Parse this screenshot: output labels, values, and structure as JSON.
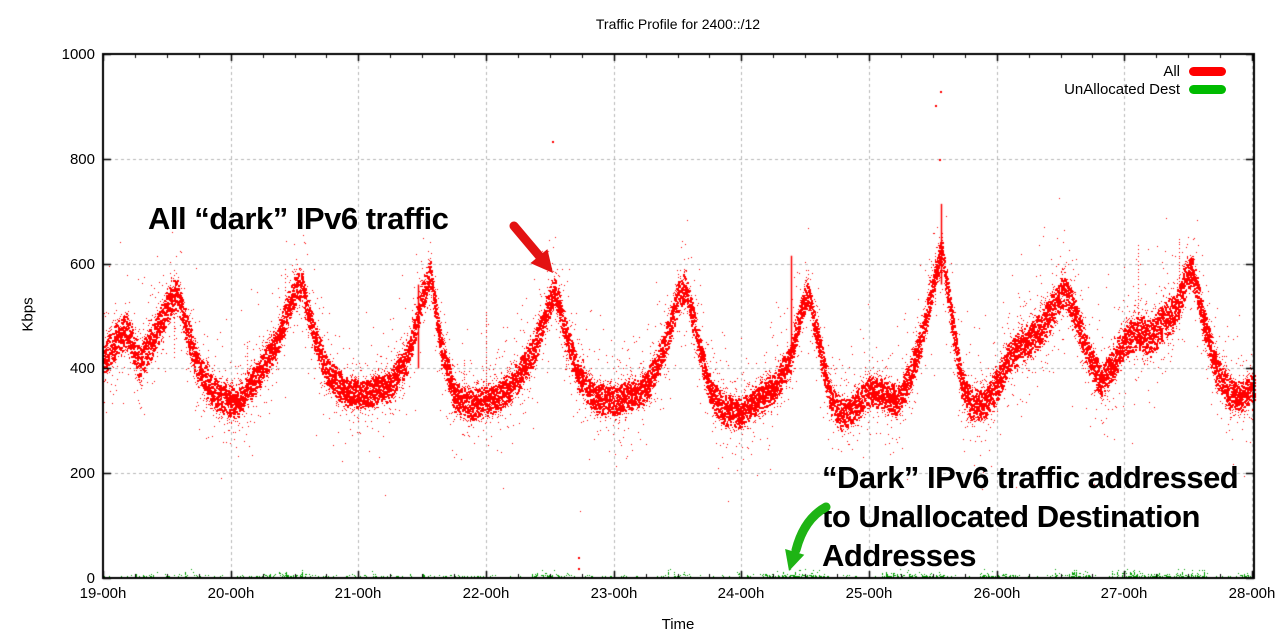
{
  "title": "Traffic Profile for 2400::/12",
  "axes": {
    "x": {
      "label": "Time",
      "tick_labels": [
        "19-00h",
        "20-00h",
        "21-00h",
        "22-00h",
        "23-00h",
        "24-00h",
        "25-00h",
        "26-00h",
        "27-00h",
        "28-00h"
      ],
      "tick_days": [
        19,
        20,
        21,
        22,
        23,
        24,
        25,
        26,
        27,
        28
      ],
      "minor_per_major": 4
    },
    "y": {
      "label": "Kbps",
      "tick_labels": [
        "0",
        "200",
        "400",
        "600",
        "800",
        "1000"
      ],
      "tick_values": [
        0,
        200,
        400,
        600,
        800,
        1000
      ]
    }
  },
  "legend": [
    {
      "label": "All",
      "color": "#ff0000"
    },
    {
      "label": "UnAllocated Dest",
      "color": "#00bb00"
    }
  ],
  "annotations": {
    "all_dark": {
      "text": "All “dark” IPv6 traffic",
      "arrow_color": "#e31212",
      "arrow_from_day_kbps": [
        22.23,
        668
      ],
      "arrow_to_day_kbps": [
        22.52,
        583
      ]
    },
    "unallocated": {
      "lines": [
        "“Dark” IPv6 traffic addressed",
        "to Unallocated Destination",
        "Addresses"
      ],
      "arrow_color": "#1eb414",
      "arrow_from_day_kbps": [
        24.66,
        133
      ],
      "arrow_to_day_kbps": [
        24.33,
        13
      ]
    }
  },
  "chart_data": {
    "type": "scatter",
    "title": "Traffic Profile for 2400::/12",
    "xlabel": "Time",
    "ylabel": "Kbps",
    "xlim": [
      19,
      28
    ],
    "ylim": [
      0,
      1000
    ],
    "grid": true,
    "legend_position": "top-right",
    "x_unit": "day-of-month at 00h",
    "series": [
      {
        "name": "All",
        "color": "#ff0000",
        "description": "Dense diurnal band of all dark IPv6 traffic, Kbps vs time",
        "band_profile": [
          [
            19.0,
            420,
            50
          ],
          [
            19.1,
            455,
            50
          ],
          [
            19.18,
            475,
            48
          ],
          [
            19.28,
            410,
            48
          ],
          [
            19.4,
            462,
            48
          ],
          [
            19.5,
            520,
            46
          ],
          [
            19.57,
            548,
            44
          ],
          [
            19.65,
            480,
            44
          ],
          [
            19.75,
            395,
            44
          ],
          [
            19.9,
            345,
            44
          ],
          [
            20.05,
            335,
            44
          ],
          [
            20.2,
            385,
            44
          ],
          [
            20.35,
            445,
            44
          ],
          [
            20.48,
            540,
            44
          ],
          [
            20.55,
            565,
            42
          ],
          [
            20.63,
            480,
            42
          ],
          [
            20.75,
            395,
            42
          ],
          [
            20.88,
            358,
            42
          ],
          [
            21.0,
            352,
            42
          ],
          [
            21.12,
            358,
            42
          ],
          [
            21.25,
            368,
            44
          ],
          [
            21.38,
            420,
            44
          ],
          [
            21.5,
            540,
            42
          ],
          [
            21.56,
            580,
            40
          ],
          [
            21.64,
            450,
            42
          ],
          [
            21.75,
            345,
            42
          ],
          [
            21.88,
            330,
            42
          ],
          [
            22.0,
            338,
            42
          ],
          [
            22.12,
            352,
            42
          ],
          [
            22.25,
            385,
            44
          ],
          [
            22.38,
            440,
            44
          ],
          [
            22.48,
            520,
            42
          ],
          [
            22.54,
            548,
            40
          ],
          [
            22.62,
            470,
            42
          ],
          [
            22.72,
            385,
            42
          ],
          [
            22.85,
            345,
            42
          ],
          [
            23.0,
            340,
            42
          ],
          [
            23.12,
            348,
            42
          ],
          [
            23.25,
            362,
            42
          ],
          [
            23.38,
            430,
            44
          ],
          [
            23.5,
            535,
            44
          ],
          [
            23.56,
            558,
            42
          ],
          [
            23.64,
            470,
            42
          ],
          [
            23.75,
            360,
            42
          ],
          [
            23.85,
            322,
            42
          ],
          [
            24.0,
            315,
            42
          ],
          [
            24.12,
            342,
            42
          ],
          [
            24.25,
            362,
            42
          ],
          [
            24.38,
            420,
            42
          ],
          [
            24.47,
            520,
            40
          ],
          [
            24.52,
            545,
            40
          ],
          [
            24.6,
            450,
            42
          ],
          [
            24.7,
            340,
            42
          ],
          [
            24.78,
            310,
            42
          ],
          [
            24.9,
            330,
            42
          ],
          [
            25.0,
            358,
            42
          ],
          [
            25.1,
            352,
            42
          ],
          [
            25.22,
            338,
            42
          ],
          [
            25.32,
            385,
            44
          ],
          [
            25.42,
            470,
            44
          ],
          [
            25.52,
            590,
            44
          ],
          [
            25.57,
            620,
            40
          ],
          [
            25.63,
            520,
            44
          ],
          [
            25.72,
            370,
            44
          ],
          [
            25.8,
            330,
            44
          ],
          [
            25.9,
            335,
            44
          ],
          [
            26.0,
            368,
            46
          ],
          [
            26.1,
            425,
            48
          ],
          [
            26.22,
            448,
            50
          ],
          [
            26.35,
            478,
            50
          ],
          [
            26.47,
            530,
            46
          ],
          [
            26.53,
            552,
            44
          ],
          [
            26.62,
            498,
            44
          ],
          [
            26.72,
            420,
            44
          ],
          [
            26.82,
            375,
            44
          ],
          [
            26.92,
            415,
            46
          ],
          [
            27.0,
            452,
            48
          ],
          [
            27.1,
            472,
            52
          ],
          [
            27.2,
            458,
            52
          ],
          [
            27.3,
            488,
            52
          ],
          [
            27.4,
            512,
            48
          ],
          [
            27.48,
            572,
            44
          ],
          [
            27.53,
            592,
            42
          ],
          [
            27.62,
            488,
            44
          ],
          [
            27.72,
            395,
            44
          ],
          [
            27.82,
            352,
            44
          ],
          [
            27.92,
            345,
            44
          ],
          [
            28.02,
            368,
            44
          ]
        ],
        "spikes": [
          [
            21.47,
            400,
            560
          ],
          [
            24.39,
            420,
            615
          ],
          [
            25.565,
            560,
            714
          ]
        ],
        "outliers": [
          [
            22.52,
            834
          ],
          [
            25.515,
            902
          ],
          [
            25.555,
            930
          ],
          [
            25.545,
            800
          ],
          [
            22.72,
            40
          ],
          [
            22.72,
            20
          ]
        ]
      },
      {
        "name": "UnAllocated Dest",
        "color": "#00a000",
        "description": "Sparse specks near 0-18 Kbps along the x axis",
        "base_level_kbps": [
          0,
          8
        ],
        "max_kbps": 18,
        "clusters": [
          [
            19.25,
            19.45,
            0.5
          ],
          [
            19.55,
            19.75,
            0.3
          ],
          [
            20.3,
            20.65,
            0.5
          ],
          [
            21.05,
            21.2,
            0.3
          ],
          [
            21.4,
            21.55,
            0.4
          ],
          [
            22.35,
            22.65,
            0.7
          ],
          [
            23.4,
            23.6,
            0.5
          ],
          [
            23.9,
            24.05,
            0.3
          ],
          [
            24.15,
            24.65,
            0.7
          ],
          [
            25.1,
            25.65,
            0.8
          ],
          [
            25.85,
            26.15,
            0.7
          ],
          [
            26.45,
            26.75,
            0.6
          ],
          [
            26.9,
            27.65,
            0.8
          ],
          [
            27.85,
            28.02,
            0.35
          ]
        ]
      }
    ]
  },
  "colors": {
    "grid": "#b8b8b8",
    "axis": "#000000",
    "background": "#ffffff"
  }
}
